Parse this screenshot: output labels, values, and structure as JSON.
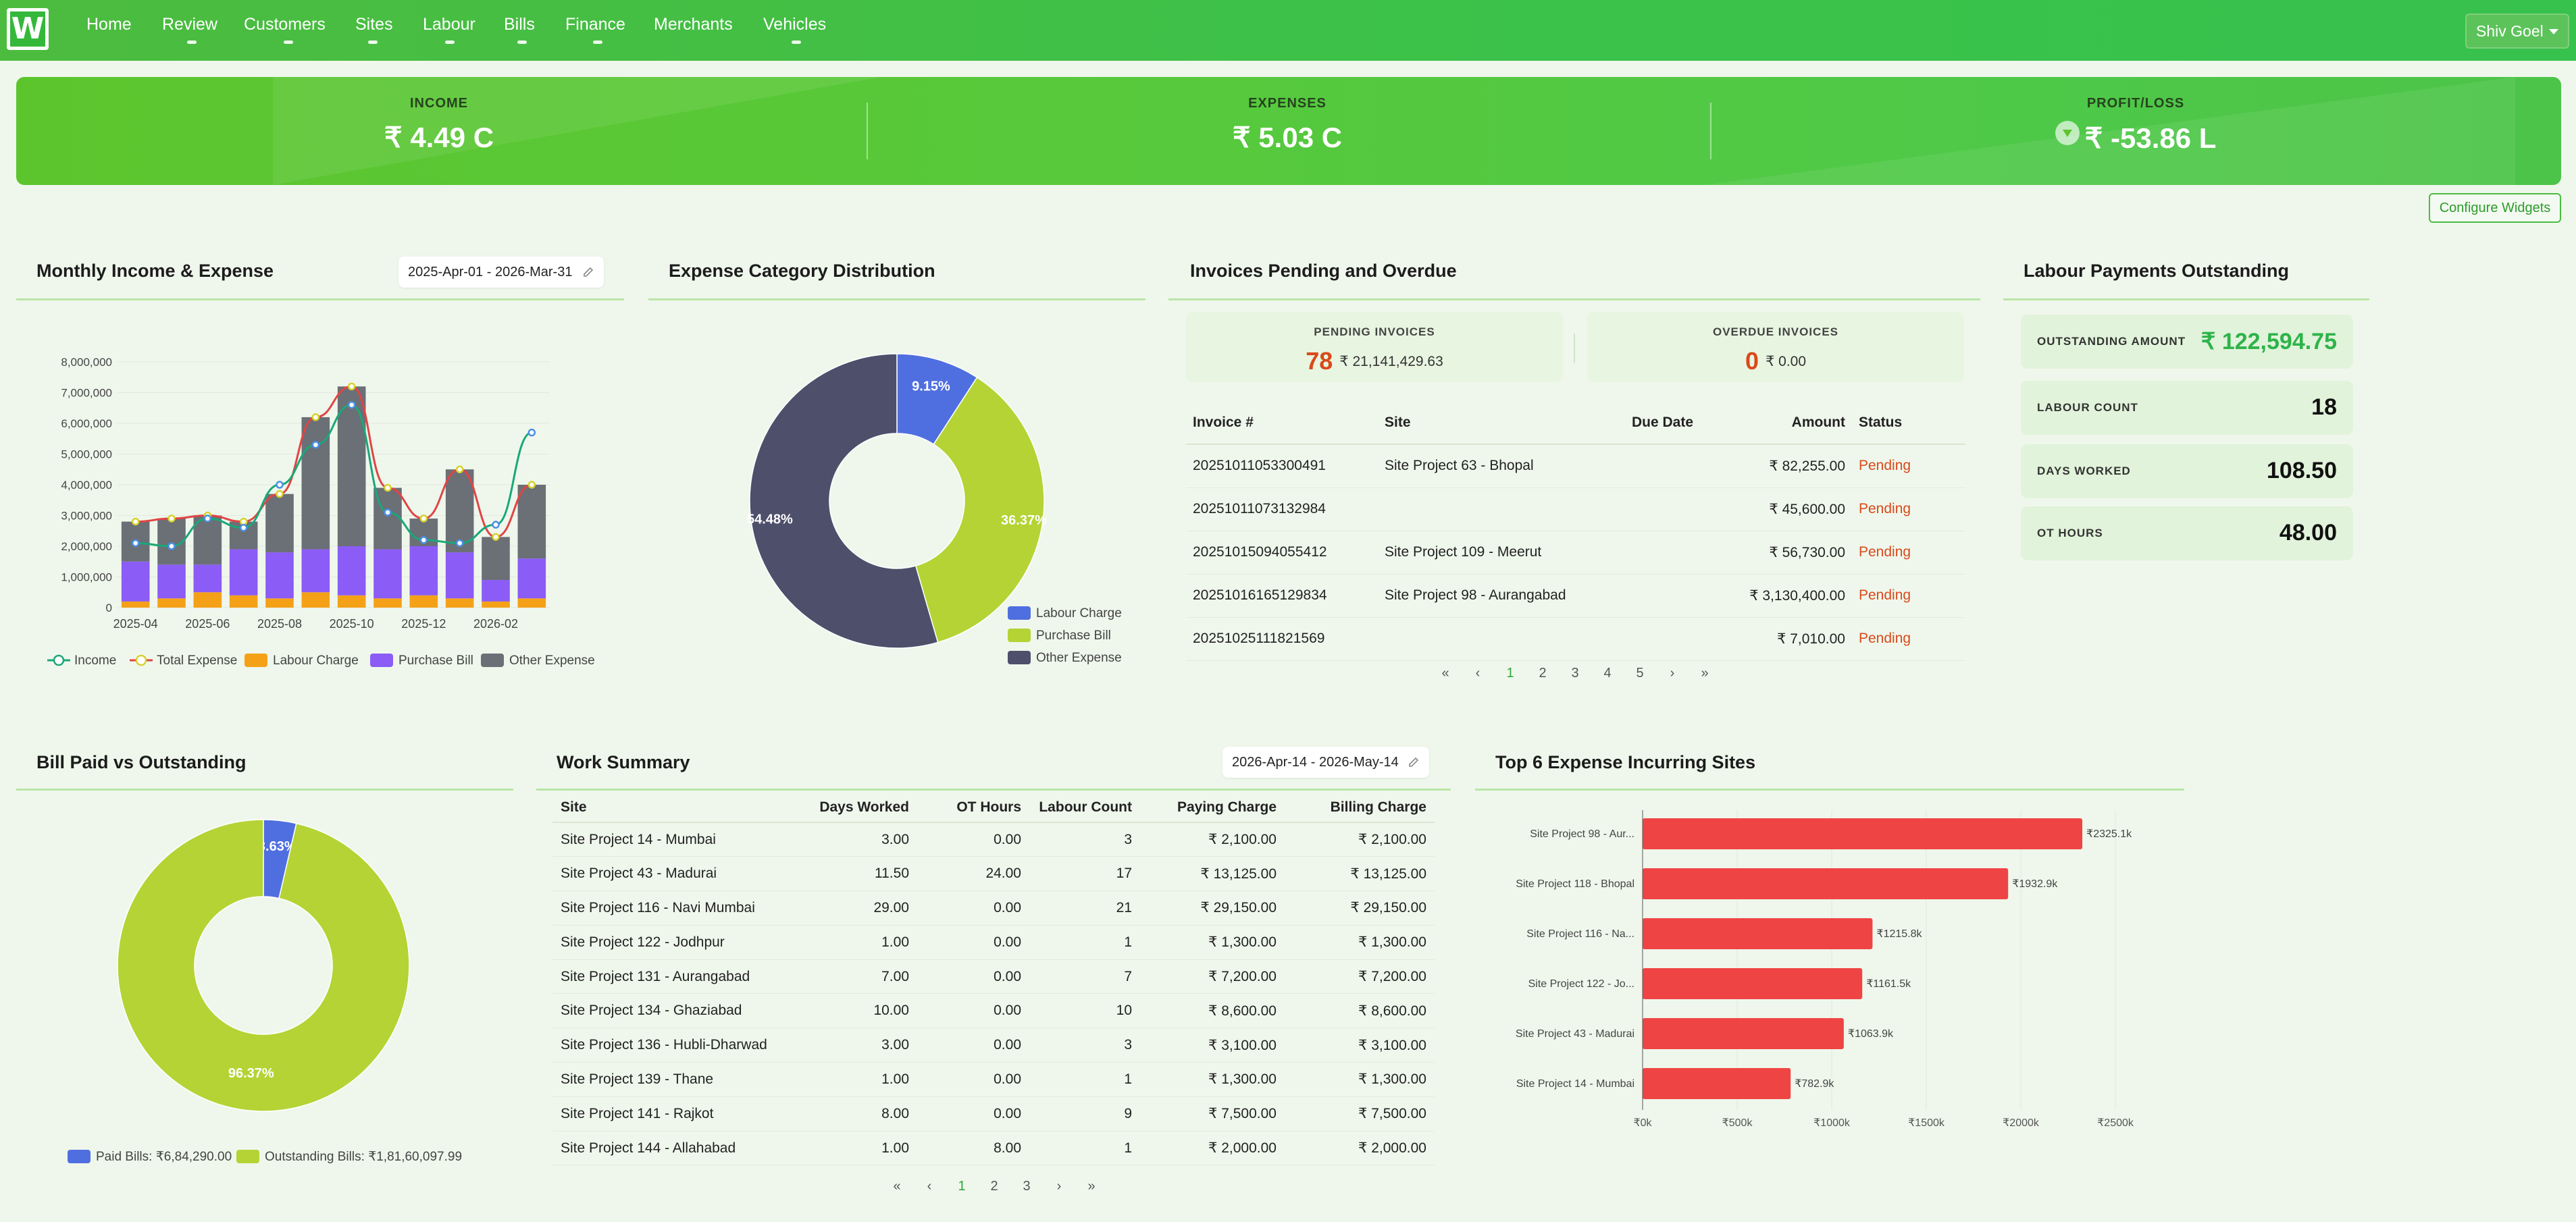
{
  "nav": {
    "logo": "W",
    "items": [
      "Home",
      "Review",
      "Customers",
      "Sites",
      "Labour",
      "Bills",
      "Finance",
      "Merchants",
      "Vehicles"
    ],
    "user": "Shiv Goel"
  },
  "kpis": {
    "income": {
      "label": "INCOME",
      "value": "₹ 4.49 C"
    },
    "expenses": {
      "label": "EXPENSES",
      "value": "₹ 5.03 C"
    },
    "profit": {
      "label": "PROFIT/LOSS",
      "value": "₹ -53.86 L"
    }
  },
  "configure_label": "Configure Widgets",
  "monthly": {
    "title": "Monthly Income & Expense",
    "date_range": "2025-Apr-01 - 2026-Mar-31",
    "legend": [
      "Income",
      "Total Expense",
      "Labour Charge",
      "Purchase Bill",
      "Other Expense"
    ]
  },
  "expense_dist": {
    "title": "Expense Category Distribution",
    "legend": [
      "Labour Charge",
      "Purchase Bill",
      "Other Expense"
    ]
  },
  "invoices": {
    "title": "Invoices Pending and Overdue",
    "pending": {
      "label": "PENDING INVOICES",
      "count": "78",
      "amount": "₹ 21,141,429.63"
    },
    "overdue": {
      "label": "OVERDUE INVOICES",
      "count": "0",
      "amount": "₹ 0.00"
    },
    "headers": [
      "Invoice #",
      "Site",
      "Due Date",
      "Amount",
      "Status"
    ],
    "rows": [
      {
        "invoice": "20251011053300491",
        "site": "Site Project 63 - Bhopal",
        "due": "",
        "amount": "₹ 82,255.00",
        "status": "Pending"
      },
      {
        "invoice": "20251011073132984",
        "site": "",
        "due": "",
        "amount": "₹ 45,600.00",
        "status": "Pending"
      },
      {
        "invoice": "20251015094055412",
        "site": "Site Project 109 - Meerut",
        "due": "",
        "amount": "₹ 56,730.00",
        "status": "Pending"
      },
      {
        "invoice": "20251016165129834",
        "site": "Site Project 98 - Aurangabad",
        "due": "",
        "amount": "₹ 3,130,400.00",
        "status": "Pending"
      },
      {
        "invoice": "20251025111821569",
        "site": "",
        "due": "",
        "amount": "₹ 7,010.00",
        "status": "Pending"
      }
    ],
    "pages": [
      "«",
      "‹",
      "1",
      "2",
      "3",
      "4",
      "5",
      "›",
      "»"
    ]
  },
  "labour": {
    "title": "Labour Payments Outstanding",
    "tiles": [
      {
        "label": "OUTSTANDING AMOUNT",
        "value": "₹ 122,594.75"
      },
      {
        "label": "LABOUR COUNT",
        "value": "18"
      },
      {
        "label": "DAYS WORKED",
        "value": "108.50"
      },
      {
        "label": "OT HOURS",
        "value": "48.00"
      }
    ]
  },
  "bill_paid": {
    "title": "Bill Paid vs Outstanding",
    "legend": [
      "Paid Bills: ₹6,84,290.00",
      "Outstanding Bills: ₹1,81,60,097.99"
    ]
  },
  "work": {
    "title": "Work Summary",
    "date_range": "2026-Apr-14 - 2026-May-14",
    "headers": [
      "Site",
      "Days Worked",
      "OT Hours",
      "Labour Count",
      "Paying Charge",
      "Billing Charge"
    ],
    "rows": [
      [
        "Site Project 14 - Mumbai",
        "3.00",
        "0.00",
        "3",
        "₹ 2,100.00",
        "₹ 2,100.00"
      ],
      [
        "Site Project 43 - Madurai",
        "11.50",
        "24.00",
        "17",
        "₹ 13,125.00",
        "₹ 13,125.00"
      ],
      [
        "Site Project 116 - Navi Mumbai",
        "29.00",
        "0.00",
        "21",
        "₹ 29,150.00",
        "₹ 29,150.00"
      ],
      [
        "Site Project 122 - Jodhpur",
        "1.00",
        "0.00",
        "1",
        "₹ 1,300.00",
        "₹ 1,300.00"
      ],
      [
        "Site Project 131 - Aurangabad",
        "7.00",
        "0.00",
        "7",
        "₹ 7,200.00",
        "₹ 7,200.00"
      ],
      [
        "Site Project 134 - Ghaziabad",
        "10.00",
        "0.00",
        "10",
        "₹ 8,600.00",
        "₹ 8,600.00"
      ],
      [
        "Site Project 136 - Hubli-Dharwad",
        "3.00",
        "0.00",
        "3",
        "₹ 3,100.00",
        "₹ 3,100.00"
      ],
      [
        "Site Project 139 - Thane",
        "1.00",
        "0.00",
        "1",
        "₹ 1,300.00",
        "₹ 1,300.00"
      ],
      [
        "Site Project 141 - Rajkot",
        "8.00",
        "0.00",
        "9",
        "₹ 7,500.00",
        "₹ 7,500.00"
      ],
      [
        "Site Project 144 - Allahabad",
        "1.00",
        "8.00",
        "1",
        "₹ 2,000.00",
        "₹ 2,000.00"
      ]
    ],
    "pages": [
      "«",
      "‹",
      "1",
      "2",
      "3",
      "›",
      "»"
    ]
  },
  "top_sites": {
    "title": "Top 6 Expense Incurring Sites"
  },
  "colors": {
    "income": "#1aa878",
    "total_expense": "#e04545",
    "labour": "#f5a118",
    "purchase": "#8b5cf6",
    "other": "#6b6f76",
    "labour_pie": "#4f6fe0",
    "purchase_pie": "#b5d334",
    "other_pie": "#4d4f6b",
    "bar": "#ef4444"
  },
  "chart_data": [
    {
      "type": "bar",
      "title": "Monthly Income & Expense",
      "categories": [
        "2025-04",
        "2025-05",
        "2025-06",
        "2025-07",
        "2025-08",
        "2025-09",
        "2025-10",
        "2025-11",
        "2025-12",
        "2026-01",
        "2026-02",
        "2026-03"
      ],
      "x_tick_labels": [
        "2025-04",
        "2025-06",
        "2025-08",
        "2025-10",
        "2025-12",
        "2026-02"
      ],
      "ylim": [
        0,
        8000000
      ],
      "y_ticks": [
        "0",
        "1,000,000",
        "2,000,000",
        "3,000,000",
        "4,000,000",
        "5,000,000",
        "6,000,000",
        "7,000,000",
        "8,000,000"
      ],
      "stacked": true,
      "series": [
        {
          "name": "Labour Charge",
          "kind": "bar",
          "values": [
            200000,
            300000,
            500000,
            400000,
            300000,
            500000,
            400000,
            300000,
            400000,
            300000,
            200000,
            300000
          ]
        },
        {
          "name": "Purchase Bill",
          "kind": "bar",
          "values": [
            1300000,
            1100000,
            900000,
            1500000,
            1500000,
            1400000,
            1600000,
            1600000,
            1600000,
            1500000,
            700000,
            1300000
          ]
        },
        {
          "name": "Other Expense",
          "kind": "bar",
          "values": [
            1300000,
            1500000,
            1600000,
            900000,
            1900000,
            4300000,
            5200000,
            2000000,
            900000,
            2700000,
            1400000,
            2400000
          ]
        },
        {
          "name": "Total Expense",
          "kind": "line",
          "values": [
            2800000,
            2900000,
            3000000,
            2800000,
            3700000,
            6200000,
            7200000,
            3900000,
            2900000,
            4500000,
            2300000,
            4000000
          ]
        },
        {
          "name": "Income",
          "kind": "line",
          "values": [
            2100000,
            2000000,
            2900000,
            2600000,
            4000000,
            5300000,
            6600000,
            3100000,
            2200000,
            2100000,
            2700000,
            5700000
          ]
        }
      ]
    },
    {
      "type": "pie",
      "title": "Expense Category Distribution",
      "labels": [
        "Labour Charge",
        "Purchase Bill",
        "Other Expense"
      ],
      "values": [
        9.15,
        36.37,
        54.48
      ],
      "display": [
        "9.15%",
        "36.37%",
        "54.48%"
      ]
    },
    {
      "type": "pie",
      "title": "Bill Paid vs Outstanding",
      "labels": [
        "Paid Bills",
        "Outstanding Bills"
      ],
      "values": [
        3.63,
        96.37
      ],
      "display": [
        "3.63%",
        "96.37%"
      ]
    },
    {
      "type": "bar",
      "orientation": "horizontal",
      "title": "Top 6 Expense Incurring Sites",
      "categories": [
        "Site Project 98 - Aur...",
        "Site Project 118 - Bhopal",
        "Site Project 116 - Na...",
        "Site Project 122 - Jo...",
        "Site Project 43 - Madurai",
        "Site Project 14 - Mumbai"
      ],
      "values": [
        2325.1,
        1932.9,
        1215.8,
        1161.5,
        1063.9,
        782.9
      ],
      "value_labels": [
        "₹2325.1k",
        "₹1932.9k",
        "₹1215.8k",
        "₹1161.5k",
        "₹1063.9k",
        "₹782.9k"
      ],
      "xlim": [
        0,
        2500
      ],
      "x_ticks": [
        "₹0k",
        "₹500k",
        "₹1000k",
        "₹1500k",
        "₹2000k",
        "₹2500k"
      ]
    }
  ]
}
